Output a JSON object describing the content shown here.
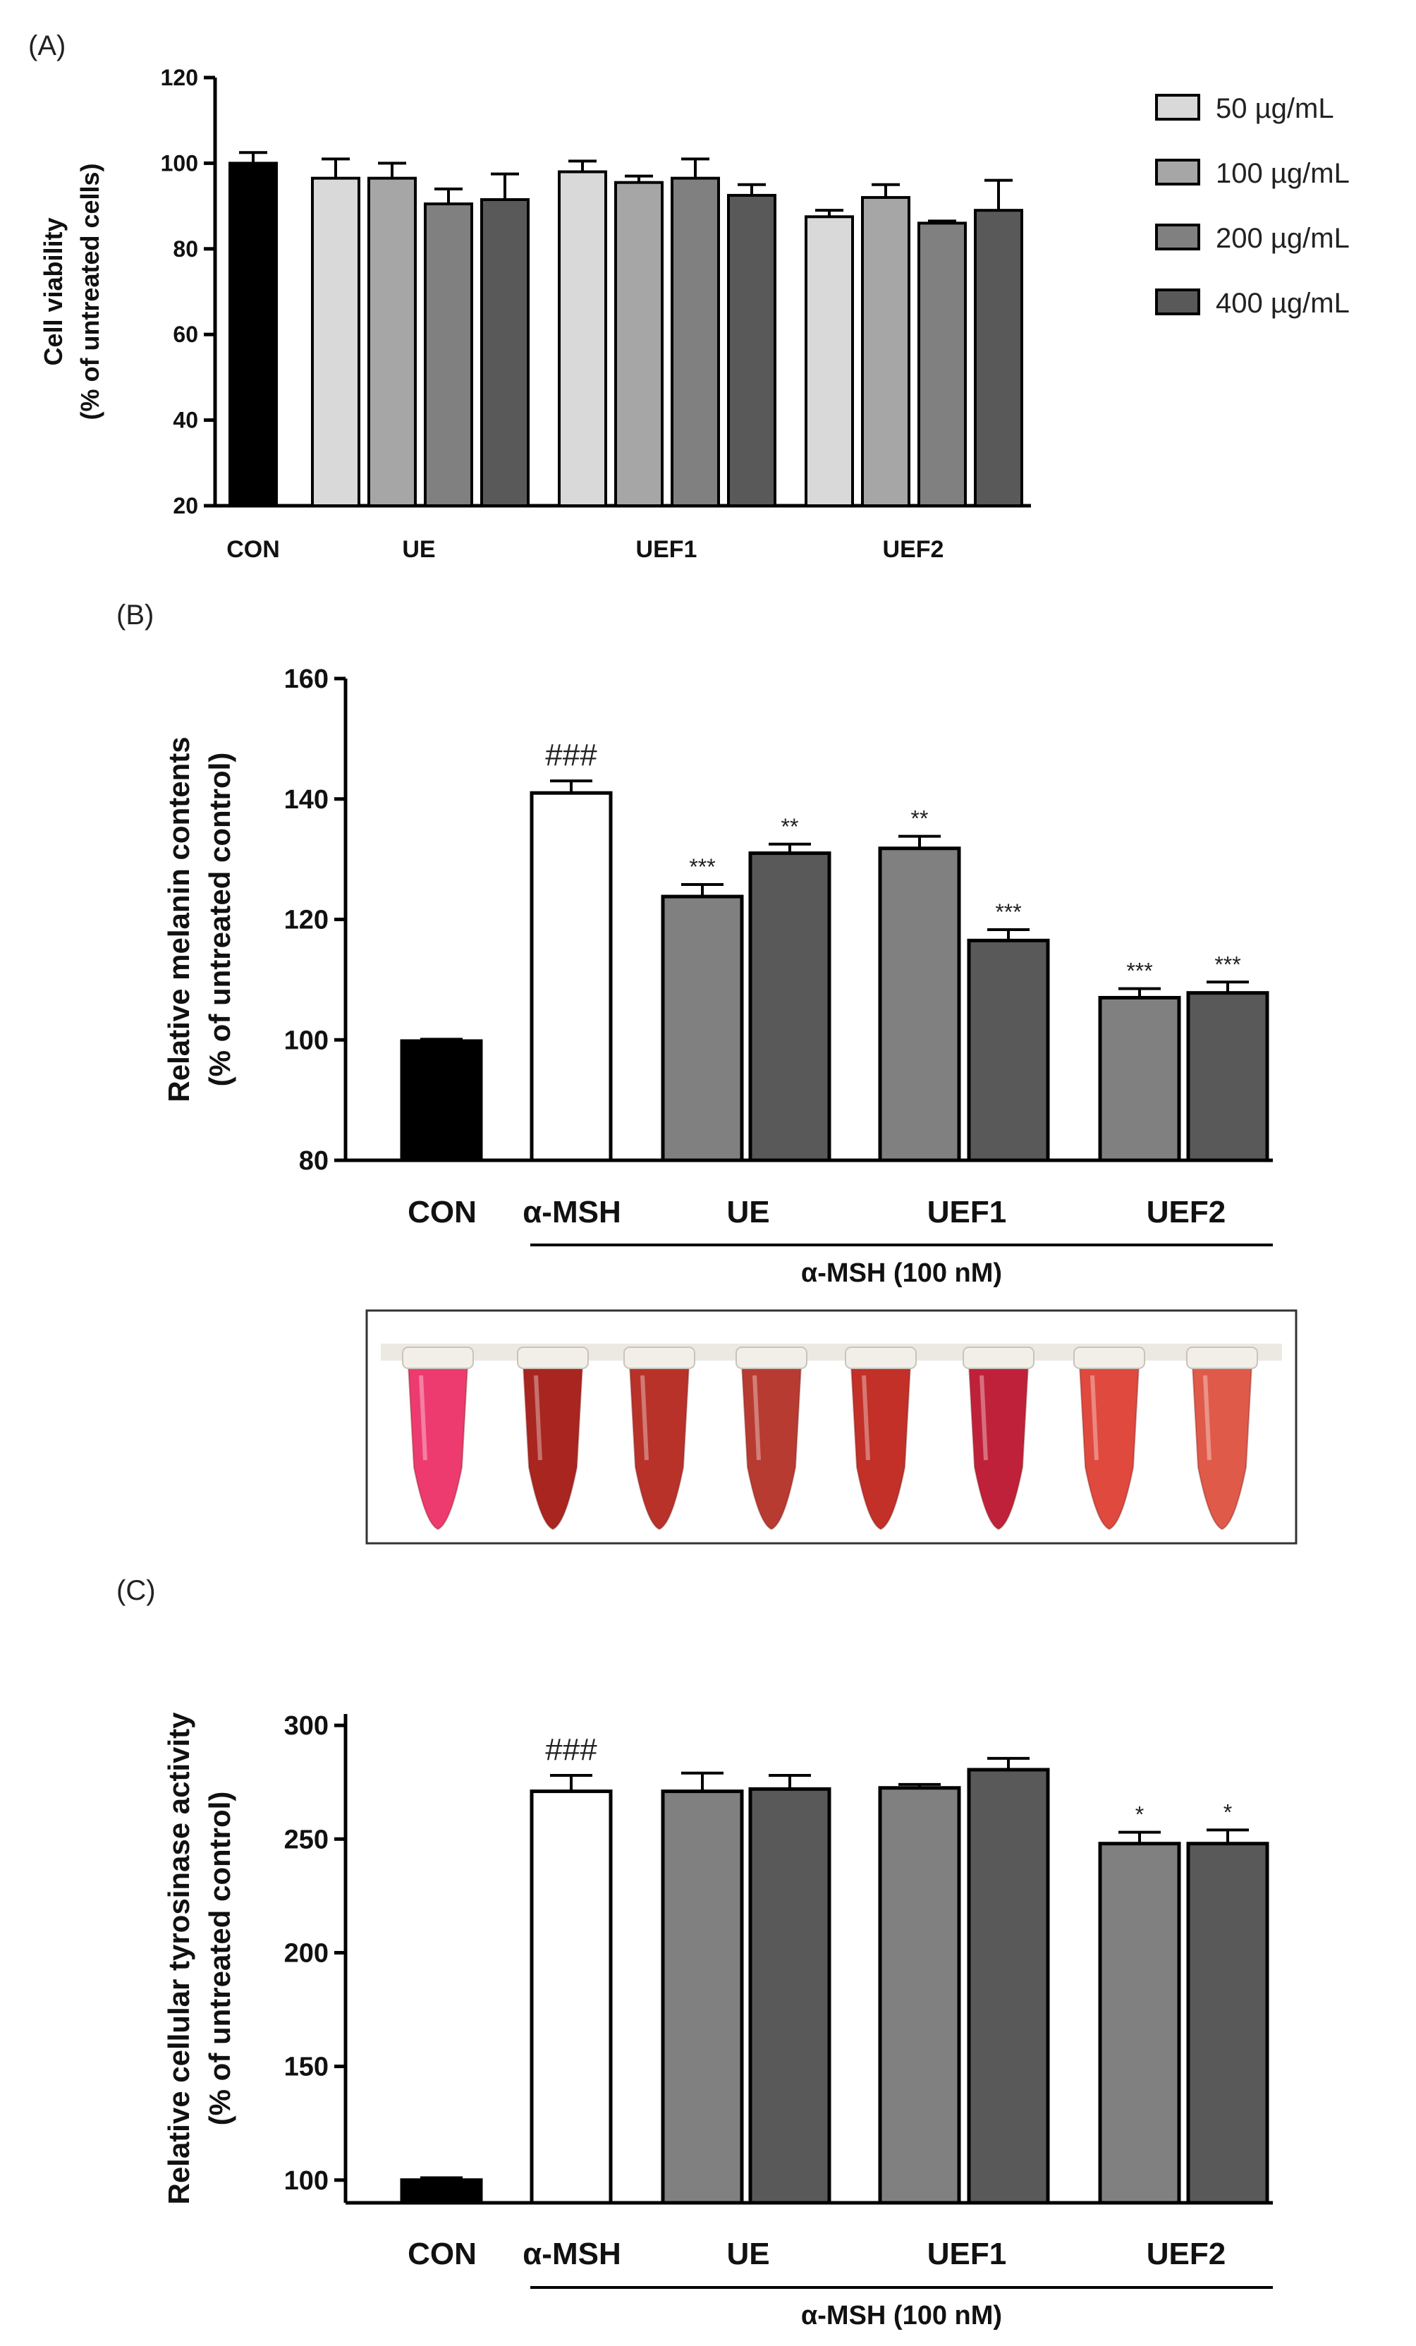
{
  "figure": {
    "panel_labels": [
      "(A)",
      "(B)",
      "(C)"
    ]
  },
  "colors": {
    "con": "#000000",
    "c50": "#d9d9d9",
    "c100": "#a6a6a6",
    "c200": "#808080",
    "c400": "#595959",
    "amsh": "#ffffff"
  },
  "photo": {
    "tube_colors": [
      "#ee3b6f",
      "#a8261f",
      "#b8322a",
      "#b83b31",
      "#c23027",
      "#c0213a",
      "#e0493e",
      "#e05a49"
    ]
  },
  "chart_data": [
    {
      "type": "bar",
      "panel": "(A)",
      "ylabel_lines": [
        "Cell viability",
        "(% of untreated cells)"
      ],
      "ylim": [
        20,
        120
      ],
      "yticks": [
        20,
        40,
        60,
        80,
        100,
        120
      ],
      "categories": [
        "CON",
        "UE",
        "UEF1",
        "UEF2"
      ],
      "legend": [
        "50 µg/mL",
        "100 µg/mL",
        "200 µg/mL",
        "400 µg/mL"
      ],
      "bars": [
        {
          "group": "CON",
          "series": "CON",
          "value": 100,
          "error": 2.5
        },
        {
          "group": "UE",
          "series": "50 µg/mL",
          "value": 96.5,
          "error": 4.5
        },
        {
          "group": "UE",
          "series": "100 µg/mL",
          "value": 96.5,
          "error": 3.5
        },
        {
          "group": "UE",
          "series": "200 µg/mL",
          "value": 90.5,
          "error": 3.5
        },
        {
          "group": "UE",
          "series": "400 µg/mL",
          "value": 91.5,
          "error": 6
        },
        {
          "group": "UEF1",
          "series": "50 µg/mL",
          "value": 98,
          "error": 2.5
        },
        {
          "group": "UEF1",
          "series": "100 µg/mL",
          "value": 95.5,
          "error": 1.5
        },
        {
          "group": "UEF1",
          "series": "200 µg/mL",
          "value": 96.5,
          "error": 4.5
        },
        {
          "group": "UEF1",
          "series": "400 µg/mL",
          "value": 92.5,
          "error": 2.5
        },
        {
          "group": "UEF2",
          "series": "50 µg/mL",
          "value": 87.5,
          "error": 1.5
        },
        {
          "group": "UEF2",
          "series": "100 µg/mL",
          "value": 92,
          "error": 3
        },
        {
          "group": "UEF2",
          "series": "200 µg/mL",
          "value": 86,
          "error": 0.5
        },
        {
          "group": "UEF2",
          "series": "400 µg/mL",
          "value": 89,
          "error": 7
        }
      ]
    },
    {
      "type": "bar",
      "panel": "(B)",
      "ylabel_lines": [
        "Relative melanin contents",
        "(% of untreated control)"
      ],
      "ylim": [
        80,
        160
      ],
      "yticks": [
        80,
        100,
        120,
        140,
        160
      ],
      "categories": [
        "CON",
        "α-MSH",
        "UE",
        "UEF1",
        "UEF2"
      ],
      "group_label": "α-MSH (100 nM)",
      "bars": [
        {
          "group": "CON",
          "series": "CON",
          "value": 99.8,
          "error": 0.3,
          "sig": ""
        },
        {
          "group": "α-MSH",
          "series": "α-MSH",
          "value": 141,
          "error": 2,
          "sig": "###"
        },
        {
          "group": "UE",
          "series": "200 µg/mL",
          "value": 123.8,
          "error": 2,
          "sig": "***"
        },
        {
          "group": "UE",
          "series": "400 µg/mL",
          "value": 131,
          "error": 1.5,
          "sig": "**"
        },
        {
          "group": "UEF1",
          "series": "200 µg/mL",
          "value": 131.8,
          "error": 2,
          "sig": "**"
        },
        {
          "group": "UEF1",
          "series": "400 µg/mL",
          "value": 116.5,
          "error": 1.8,
          "sig": "***"
        },
        {
          "group": "UEF2",
          "series": "200 µg/mL",
          "value": 107,
          "error": 1.5,
          "sig": "***"
        },
        {
          "group": "UEF2",
          "series": "400 µg/mL",
          "value": 107.8,
          "error": 1.8,
          "sig": "***"
        }
      ]
    },
    {
      "type": "bar",
      "panel": "(C)",
      "ylabel_lines": [
        "Relative cellular tyrosinase activity",
        "(% of untreated control)"
      ],
      "ylim": [
        90,
        305
      ],
      "yticks": [
        100,
        150,
        200,
        250,
        300
      ],
      "categories": [
        "CON",
        "α-MSH",
        "UE",
        "UEF1",
        "UEF2"
      ],
      "group_label": "α-MSH (100 nM)",
      "bars": [
        {
          "group": "CON",
          "series": "CON",
          "value": 100,
          "error": 1,
          "sig": ""
        },
        {
          "group": "α-MSH",
          "series": "α-MSH",
          "value": 271,
          "error": 7,
          "sig": "###"
        },
        {
          "group": "UE",
          "series": "200 µg/mL",
          "value": 271,
          "error": 8,
          "sig": ""
        },
        {
          "group": "UE",
          "series": "400 µg/mL",
          "value": 272,
          "error": 6,
          "sig": ""
        },
        {
          "group": "UEF1",
          "series": "200 µg/mL",
          "value": 272.5,
          "error": 1.5,
          "sig": ""
        },
        {
          "group": "UEF1",
          "series": "400 µg/mL",
          "value": 280.5,
          "error": 5,
          "sig": ""
        },
        {
          "group": "UEF2",
          "series": "200 µg/mL",
          "value": 248,
          "error": 5,
          "sig": "*"
        },
        {
          "group": "UEF2",
          "series": "400 µg/mL",
          "value": 248,
          "error": 6,
          "sig": "*"
        }
      ]
    }
  ]
}
